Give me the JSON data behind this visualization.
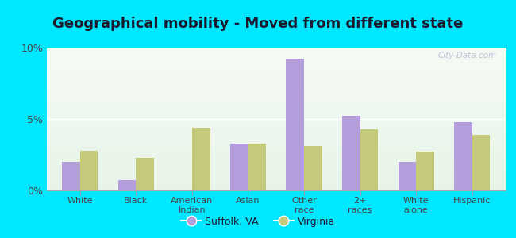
{
  "title": "Geographical mobility - Moved from different state",
  "categories": [
    "White",
    "Black",
    "American\nIndian",
    "Asian",
    "Other\nrace",
    "2+\nraces",
    "White\nalone",
    "Hispanic"
  ],
  "suffolk_values": [
    2.0,
    0.7,
    0.0,
    3.3,
    9.2,
    5.2,
    2.0,
    4.8
  ],
  "virginia_values": [
    2.8,
    2.3,
    4.4,
    3.3,
    3.1,
    4.3,
    2.7,
    3.9
  ],
  "suffolk_color": "#b39ddb",
  "virginia_color": "#c5c97a",
  "ylim": [
    0,
    10
  ],
  "yticks": [
    0,
    5,
    10
  ],
  "ytick_labels": [
    "0%",
    "5%",
    "10%"
  ],
  "outer_background": "#00e8ff",
  "title_fontsize": 13,
  "title_color": "#1a1a2e",
  "legend_suffolk": "Suffolk, VA",
  "legend_virginia": "Virginia",
  "watermark": "City-Data.com",
  "bg_colors": [
    "#e8f4e8",
    "#f5fbf5"
  ],
  "grid_color": "#d0d0c0",
  "axis_label_color": "#444444",
  "bar_width": 0.32
}
